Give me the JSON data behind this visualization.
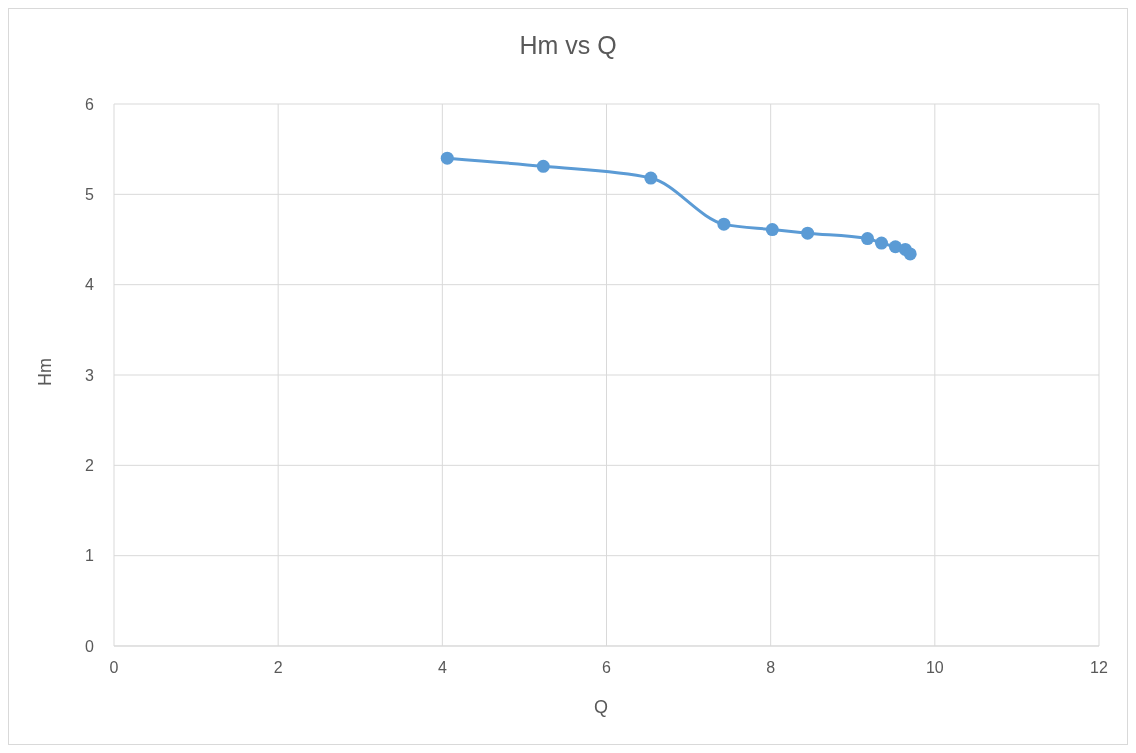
{
  "chart_data": {
    "type": "line",
    "title": "Hm vs Q",
    "xlabel": "Q",
    "ylabel": "Hm",
    "x": [
      4.06,
      5.23,
      6.54,
      7.43,
      8.02,
      8.45,
      9.18,
      9.35,
      9.52,
      9.64,
      9.7
    ],
    "series": [
      {
        "color": "#5b9bd5",
        "values": [
          5.4,
          5.31,
          5.18,
          4.67,
          4.61,
          4.57,
          4.51,
          4.46,
          4.42,
          4.39,
          4.34
        ]
      }
    ],
    "xlim": [
      0,
      12
    ],
    "xticks": [
      0,
      2,
      4,
      6,
      8,
      10,
      12
    ],
    "ylim": [
      0,
      6
    ],
    "yticks": [
      0,
      1,
      2,
      3,
      4,
      5,
      6
    ],
    "grid": true,
    "marker": "circle",
    "line_style": "solid"
  }
}
